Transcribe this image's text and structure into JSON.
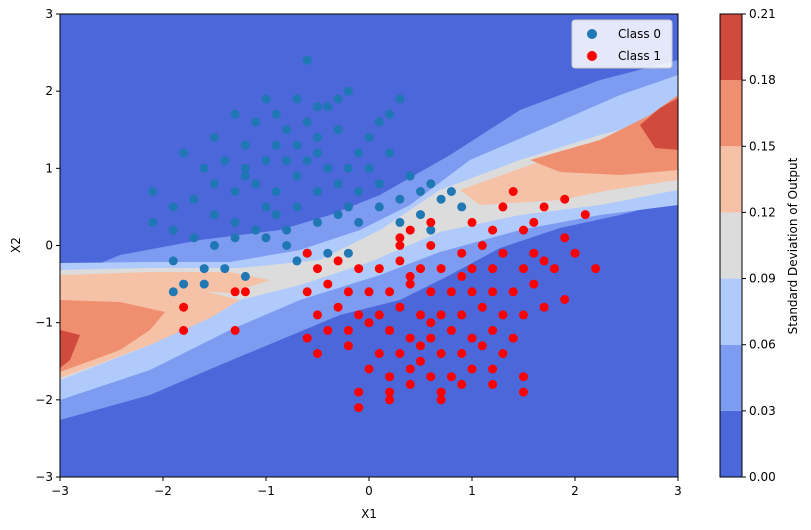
{
  "chart_data": {
    "type": "scatter",
    "xlabel": "X1",
    "ylabel": "X2",
    "xlim": [
      -3,
      3
    ],
    "ylim": [
      -3,
      3
    ],
    "x_ticks": [
      -3,
      -2,
      -1,
      0,
      1,
      2,
      3
    ],
    "y_ticks": [
      -3,
      -2,
      -1,
      0,
      1,
      2,
      3
    ],
    "x_tick_labels": [
      "−3",
      "−2",
      "−1",
      "0",
      "1",
      "2",
      "3"
    ],
    "y_tick_labels": [
      "−3",
      "−2",
      "−1",
      "0",
      "1",
      "2",
      "3"
    ],
    "grid": false,
    "legend_position": "top-right",
    "series": [
      {
        "name": "Class 0",
        "color": "#1f77b4",
        "points": [
          [
            -0.6,
            2.4
          ],
          [
            -0.2,
            2.0
          ],
          [
            -0.7,
            1.9
          ],
          [
            -1.0,
            1.9
          ],
          [
            -0.5,
            1.8
          ],
          [
            -0.4,
            1.8
          ],
          [
            -0.3,
            1.9
          ],
          [
            0.1,
            1.6
          ],
          [
            0.3,
            1.9
          ],
          [
            -1.3,
            1.7
          ],
          [
            -1.1,
            1.6
          ],
          [
            -0.9,
            1.7
          ],
          [
            -0.6,
            1.6
          ],
          [
            -0.8,
            1.5
          ],
          [
            -1.5,
            1.4
          ],
          [
            -1.2,
            1.3
          ],
          [
            -0.9,
            1.3
          ],
          [
            -0.7,
            1.3
          ],
          [
            -0.5,
            1.4
          ],
          [
            -0.3,
            1.5
          ],
          [
            0.0,
            1.4
          ],
          [
            -1.4,
            1.1
          ],
          [
            -1.2,
            1.0
          ],
          [
            -1.0,
            1.1
          ],
          [
            -0.8,
            1.1
          ],
          [
            -0.6,
            1.1
          ],
          [
            -0.4,
            1.0
          ],
          [
            -0.2,
            1.0
          ],
          [
            0.0,
            1.0
          ],
          [
            0.2,
            1.2
          ],
          [
            -1.8,
            1.2
          ],
          [
            -1.6,
            1.0
          ],
          [
            -1.5,
            0.8
          ],
          [
            -1.3,
            0.7
          ],
          [
            -1.1,
            0.8
          ],
          [
            -0.9,
            0.7
          ],
          [
            -0.7,
            0.9
          ],
          [
            -0.5,
            0.7
          ],
          [
            -0.3,
            0.8
          ],
          [
            -0.1,
            0.7
          ],
          [
            0.1,
            0.8
          ],
          [
            0.3,
            0.6
          ],
          [
            0.5,
            0.7
          ],
          [
            0.7,
            0.6
          ],
          [
            0.9,
            0.5
          ],
          [
            0.8,
            0.7
          ],
          [
            -2.1,
            0.7
          ],
          [
            -1.9,
            0.5
          ],
          [
            -1.7,
            0.6
          ],
          [
            -1.5,
            0.4
          ],
          [
            -1.3,
            0.3
          ],
          [
            -1.1,
            0.2
          ],
          [
            -0.9,
            0.4
          ],
          [
            -0.7,
            0.5
          ],
          [
            -0.5,
            0.3
          ],
          [
            -0.3,
            0.4
          ],
          [
            -0.1,
            0.3
          ],
          [
            0.1,
            0.5
          ],
          [
            0.3,
            0.3
          ],
          [
            0.5,
            0.4
          ],
          [
            0.6,
            0.2
          ],
          [
            -2.1,
            0.3
          ],
          [
            -1.9,
            0.2
          ],
          [
            -1.7,
            0.1
          ],
          [
            -1.5,
            0.0
          ],
          [
            -1.3,
            0.1
          ],
          [
            -1.0,
            0.1
          ],
          [
            -0.8,
            0.0
          ],
          [
            -0.6,
            -0.1
          ],
          [
            -0.4,
            -0.1
          ],
          [
            -0.2,
            -0.1
          ],
          [
            -1.9,
            -0.2
          ],
          [
            -1.6,
            -0.3
          ],
          [
            -1.2,
            -0.4
          ],
          [
            -0.7,
            -0.2
          ],
          [
            -1.8,
            -0.5
          ],
          [
            -1.6,
            -0.5
          ],
          [
            -1.9,
            -0.6
          ],
          [
            -1.4,
            -0.3
          ],
          [
            0.4,
            0.9
          ],
          [
            0.2,
            1.7
          ],
          [
            -0.1,
            1.2
          ],
          [
            -0.5,
            1.2
          ],
          [
            -1.0,
            0.5
          ],
          [
            -1.2,
            0.9
          ],
          [
            -0.2,
            0.5
          ],
          [
            0.6,
            0.8
          ],
          [
            -0.8,
            0.2
          ]
        ]
      },
      {
        "name": "Class 1",
        "color": "#ff0000",
        "points": [
          [
            1.4,
            0.7
          ],
          [
            1.9,
            0.6
          ],
          [
            2.1,
            0.4
          ],
          [
            1.3,
            0.5
          ],
          [
            1.7,
            0.5
          ],
          [
            1.0,
            0.3
          ],
          [
            0.6,
            0.3
          ],
          [
            0.4,
            0.2
          ],
          [
            1.2,
            0.2
          ],
          [
            1.5,
            0.2
          ],
          [
            1.9,
            0.1
          ],
          [
            0.3,
            0.1
          ],
          [
            0.6,
            0.0
          ],
          [
            0.9,
            -0.1
          ],
          [
            1.1,
            0.0
          ],
          [
            1.3,
            -0.1
          ],
          [
            1.6,
            -0.1
          ],
          [
            2.0,
            -0.1
          ],
          [
            2.2,
            -0.3
          ],
          [
            -0.5,
            -0.3
          ],
          [
            -0.3,
            -0.2
          ],
          [
            -0.1,
            -0.3
          ],
          [
            0.1,
            -0.3
          ],
          [
            0.3,
            -0.2
          ],
          [
            0.5,
            -0.3
          ],
          [
            0.7,
            -0.3
          ],
          [
            1.0,
            -0.3
          ],
          [
            1.2,
            -0.3
          ],
          [
            1.5,
            -0.3
          ],
          [
            1.8,
            -0.3
          ],
          [
            -0.6,
            -0.6
          ],
          [
            -0.4,
            -0.5
          ],
          [
            -0.2,
            -0.6
          ],
          [
            0.0,
            -0.6
          ],
          [
            0.2,
            -0.6
          ],
          [
            0.4,
            -0.5
          ],
          [
            0.6,
            -0.6
          ],
          [
            0.8,
            -0.6
          ],
          [
            1.0,
            -0.6
          ],
          [
            1.2,
            -0.6
          ],
          [
            1.4,
            -0.6
          ],
          [
            1.6,
            -0.5
          ],
          [
            1.9,
            -0.7
          ],
          [
            -0.5,
            -0.9
          ],
          [
            -0.3,
            -0.8
          ],
          [
            -0.1,
            -0.9
          ],
          [
            0.1,
            -0.9
          ],
          [
            0.3,
            -0.8
          ],
          [
            0.5,
            -0.9
          ],
          [
            0.7,
            -0.9
          ],
          [
            0.9,
            -0.9
          ],
          [
            1.1,
            -0.8
          ],
          [
            1.3,
            -0.9
          ],
          [
            1.5,
            -0.9
          ],
          [
            1.7,
            -0.8
          ],
          [
            -0.6,
            -1.2
          ],
          [
            -0.4,
            -1.1
          ],
          [
            -0.2,
            -1.1
          ],
          [
            0.0,
            -1.0
          ],
          [
            0.2,
            -1.1
          ],
          [
            0.4,
            -1.2
          ],
          [
            0.6,
            -1.2
          ],
          [
            0.8,
            -1.1
          ],
          [
            1.0,
            -1.2
          ],
          [
            1.2,
            -1.1
          ],
          [
            1.4,
            -1.2
          ],
          [
            -0.5,
            -1.4
          ],
          [
            -0.2,
            -1.3
          ],
          [
            0.1,
            -1.4
          ],
          [
            0.3,
            -1.4
          ],
          [
            0.5,
            -1.5
          ],
          [
            0.7,
            -1.4
          ],
          [
            0.9,
            -1.4
          ],
          [
            1.1,
            -1.3
          ],
          [
            1.3,
            -1.4
          ],
          [
            0.0,
            -1.6
          ],
          [
            0.2,
            -1.7
          ],
          [
            0.4,
            -1.6
          ],
          [
            0.6,
            -1.7
          ],
          [
            0.8,
            -1.7
          ],
          [
            1.0,
            -1.6
          ],
          [
            1.2,
            -1.6
          ],
          [
            1.5,
            -1.7
          ],
          [
            -0.1,
            -1.9
          ],
          [
            0.2,
            -1.9
          ],
          [
            0.4,
            -1.8
          ],
          [
            0.7,
            -1.9
          ],
          [
            0.9,
            -1.8
          ],
          [
            1.2,
            -1.8
          ],
          [
            1.5,
            -1.9
          ],
          [
            0.2,
            -2.0
          ],
          [
            0.7,
            -2.0
          ],
          [
            -0.1,
            -2.1
          ],
          [
            0.6,
            -1.0
          ],
          [
            0.9,
            -0.4
          ],
          [
            0.4,
            -0.4
          ],
          [
            -0.6,
            -0.1
          ],
          [
            1.7,
            -0.2
          ],
          [
            -1.8,
            -0.8
          ],
          [
            -1.3,
            -0.6
          ],
          [
            -1.2,
            -0.6
          ],
          [
            -1.3,
            -1.1
          ],
          [
            -1.8,
            -1.1
          ],
          [
            0.3,
            0.0
          ],
          [
            1.6,
            0.3
          ],
          [
            0.5,
            -1.3
          ]
        ]
      }
    ],
    "colorbar": {
      "label": "Standard Deviation of Output",
      "ticks": [
        "0.00",
        "0.03",
        "0.06",
        "0.09",
        "0.12",
        "0.15",
        "0.18",
        "0.21"
      ],
      "levels": [
        0,
        0.03,
        0.06,
        0.09,
        0.12,
        0.15,
        0.18,
        0.21
      ],
      "colors": [
        "#4b67d9",
        "#7d9bf1",
        "#b0cbfb",
        "#dcdcdc",
        "#f5c2a8",
        "#ef8f6f",
        "#d04a3d"
      ]
    }
  }
}
